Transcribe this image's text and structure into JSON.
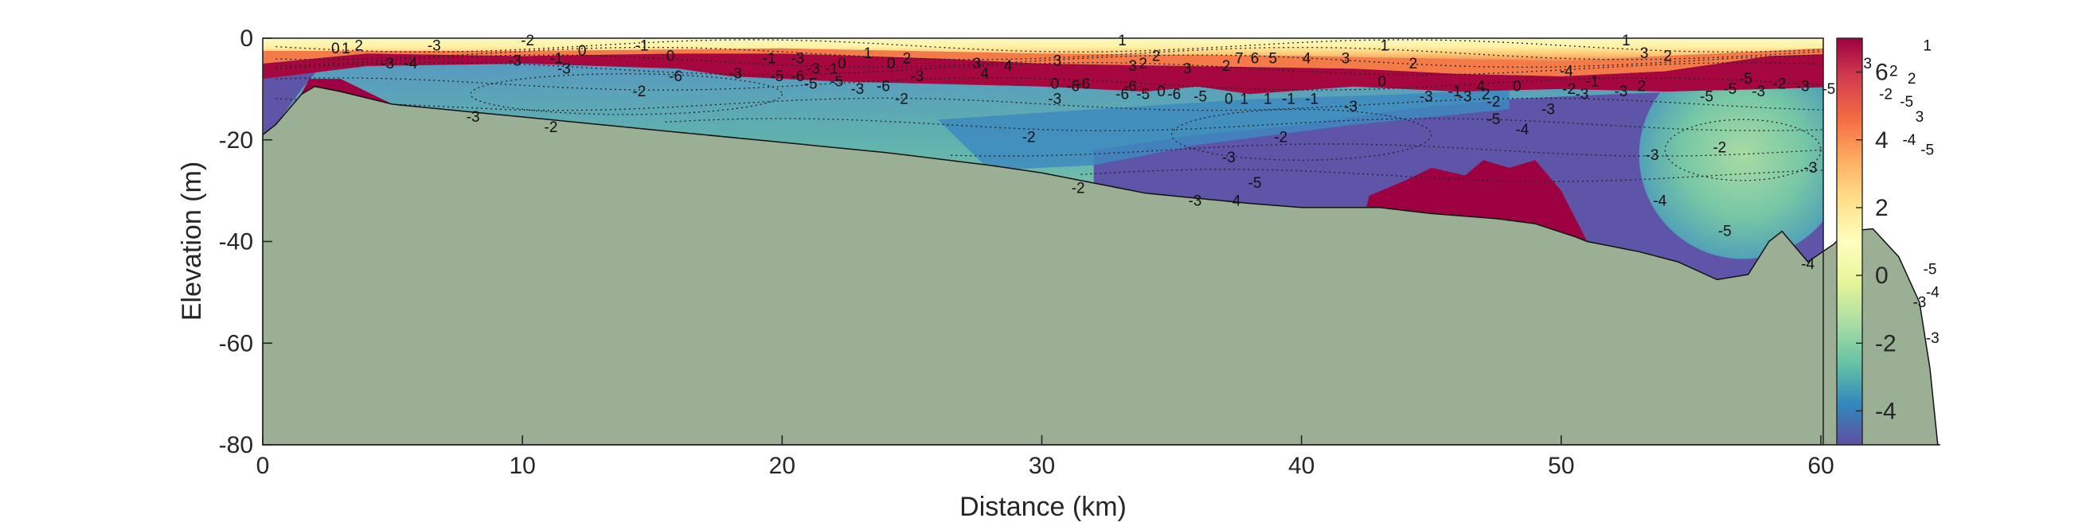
{
  "chart_data": {
    "type": "heatmap",
    "title": "",
    "xlabel": "Distance (km)",
    "ylabel": "Elevation (m)",
    "xlim": [
      0,
      64.5
    ],
    "ylim": [
      -80,
      0
    ],
    "x_ticks": [
      0,
      10,
      20,
      30,
      40,
      50,
      60
    ],
    "y_ticks": [
      0,
      -20,
      -40,
      -60,
      -80
    ],
    "x_tick_labels": [
      "0",
      "10",
      "20",
      "30",
      "40",
      "50",
      "60"
    ],
    "y_tick_labels": [
      "0",
      "-20",
      "-40",
      "-60",
      "-80"
    ],
    "colorbar": {
      "range": [
        -5,
        7
      ],
      "ticks": [
        6,
        4,
        2,
        0,
        -2,
        -4
      ],
      "tick_labels": [
        "6",
        "4",
        "2",
        "0",
        "-2",
        "-4"
      ],
      "colormap": [
        "#5e4fa2",
        "#3288bd",
        "#66c2a5",
        "#abdda4",
        "#e6f598",
        "#ffffbf",
        "#fee08b",
        "#fdae61",
        "#f46d43",
        "#d53e4f",
        "#9e0142"
      ]
    },
    "grid": false,
    "contour_lines": "dotted",
    "terrain_color": "#9aaf93",
    "bottom_profile": {
      "x": [
        0,
        0.5,
        1,
        1.5,
        2,
        3,
        5,
        8,
        12,
        16,
        20,
        24,
        28,
        30,
        32,
        34,
        36,
        38,
        40,
        42.5,
        43,
        45,
        47.5,
        49,
        50.5,
        51,
        53,
        54.5,
        56,
        57.2,
        58,
        58.5,
        59.5,
        60.5,
        61,
        62,
        63,
        63.8,
        64.2,
        64.5
      ],
      "elevation": [
        -19,
        -17,
        -14,
        -11,
        -9.5,
        -10.5,
        -13,
        -14.5,
        -16.5,
        -18.5,
        -20.5,
        -22.5,
        -25,
        -26.5,
        -28.5,
        -30.5,
        -31.5,
        -32.5,
        -33.3,
        -33.3,
        -33.3,
        -34.5,
        -35.5,
        -36.5,
        -39,
        -40,
        -42,
        -44,
        -47.5,
        -46.5,
        -40,
        -38,
        -44,
        -40.5,
        -38,
        -37.5,
        -43,
        -52,
        -65,
        -80
      ]
    },
    "contour_labels": [
      {
        "x": 2.8,
        "y": -2,
        "text": "0"
      },
      {
        "x": 3.2,
        "y": -2,
        "text": "1"
      },
      {
        "x": 3.7,
        "y": -1.5,
        "text": "2"
      },
      {
        "x": 4.8,
        "y": -5,
        "text": "-3"
      },
      {
        "x": 5.7,
        "y": -5,
        "text": "-4"
      },
      {
        "x": 6.6,
        "y": -1.5,
        "text": "-3"
      },
      {
        "x": 10.2,
        "y": -0.5,
        "text": "-2"
      },
      {
        "x": 9.7,
        "y": -4.5,
        "text": "-3"
      },
      {
        "x": 11.3,
        "y": -4,
        "text": "-1"
      },
      {
        "x": 11.6,
        "y": -6,
        "text": "-3"
      },
      {
        "x": 12.3,
        "y": -2.5,
        "text": "0"
      },
      {
        "x": 14.6,
        "y": -1.5,
        "text": "-1"
      },
      {
        "x": 15.7,
        "y": -3.5,
        "text": "0"
      },
      {
        "x": 15.9,
        "y": -7.5,
        "text": "-6"
      },
      {
        "x": 14.5,
        "y": -10.5,
        "text": "-2"
      },
      {
        "x": 8.1,
        "y": -15.5,
        "text": "-3"
      },
      {
        "x": 11.1,
        "y": -17.5,
        "text": "-2"
      },
      {
        "x": 18.2,
        "y": -7,
        "text": "-3"
      },
      {
        "x": 19.5,
        "y": -4,
        "text": "-1"
      },
      {
        "x": 19.8,
        "y": -7.5,
        "text": "-5"
      },
      {
        "x": 20.6,
        "y": -4,
        "text": "-3"
      },
      {
        "x": 20.6,
        "y": -7.5,
        "text": "-6"
      },
      {
        "x": 21.1,
        "y": -9,
        "text": "-5"
      },
      {
        "x": 21.2,
        "y": -6,
        "text": "-3"
      },
      {
        "x": 21.9,
        "y": -6,
        "text": "-1"
      },
      {
        "x": 22.3,
        "y": -5,
        "text": "0"
      },
      {
        "x": 23.3,
        "y": -3,
        "text": "1"
      },
      {
        "x": 22.1,
        "y": -8.5,
        "text": "-5"
      },
      {
        "x": 22.9,
        "y": -10,
        "text": "-3"
      },
      {
        "x": 24.2,
        "y": -5,
        "text": "0"
      },
      {
        "x": 23.9,
        "y": -9.5,
        "text": "-6"
      },
      {
        "x": 24.8,
        "y": -4,
        "text": "2"
      },
      {
        "x": 24.6,
        "y": -12,
        "text": "-2"
      },
      {
        "x": 25.2,
        "y": -7.5,
        "text": "-3"
      },
      {
        "x": 27.5,
        "y": -5,
        "text": "3"
      },
      {
        "x": 28.7,
        "y": -5.5,
        "text": "4"
      },
      {
        "x": 27.8,
        "y": -7,
        "text": "4"
      },
      {
        "x": 30.6,
        "y": -4.5,
        "text": "3"
      },
      {
        "x": 30.5,
        "y": -9,
        "text": "0"
      },
      {
        "x": 31.2,
        "y": -9.5,
        "text": "-6"
      },
      {
        "x": 31.6,
        "y": -9,
        "text": "-6"
      },
      {
        "x": 30.5,
        "y": -12,
        "text": "-3"
      },
      {
        "x": 29.5,
        "y": -19.5,
        "text": "-2"
      },
      {
        "x": 31.4,
        "y": -29.5,
        "text": "-2"
      },
      {
        "x": 33.1,
        "y": -0.5,
        "text": "1"
      },
      {
        "x": 33.5,
        "y": -5.5,
        "text": "3"
      },
      {
        "x": 33.9,
        "y": -5,
        "text": "2"
      },
      {
        "x": 34.4,
        "y": -3.5,
        "text": "2"
      },
      {
        "x": 33.4,
        "y": -9.5,
        "text": "-6"
      },
      {
        "x": 33.1,
        "y": -11,
        "text": "-6"
      },
      {
        "x": 33.9,
        "y": -11,
        "text": "-5"
      },
      {
        "x": 34.6,
        "y": -10.5,
        "text": "0"
      },
      {
        "x": 35.1,
        "y": -11,
        "text": "-6"
      },
      {
        "x": 35.6,
        "y": -6,
        "text": "3"
      },
      {
        "x": 37.1,
        "y": -5.5,
        "text": "2"
      },
      {
        "x": 37.6,
        "y": -4,
        "text": "7"
      },
      {
        "x": 38.2,
        "y": -4,
        "text": "6"
      },
      {
        "x": 38.9,
        "y": -4,
        "text": "5"
      },
      {
        "x": 40.2,
        "y": -4,
        "text": "4"
      },
      {
        "x": 41.7,
        "y": -4,
        "text": "3"
      },
      {
        "x": 36.1,
        "y": -11.5,
        "text": "-5"
      },
      {
        "x": 37.2,
        "y": -12,
        "text": "0"
      },
      {
        "x": 37.8,
        "y": -12,
        "text": "1"
      },
      {
        "x": 38.7,
        "y": -12,
        "text": "1"
      },
      {
        "x": 39.5,
        "y": -12,
        "text": "-1"
      },
      {
        "x": 40.4,
        "y": -12,
        "text": "-1"
      },
      {
        "x": 41.9,
        "y": -13.5,
        "text": "-3"
      },
      {
        "x": 39.2,
        "y": -19.5,
        "text": "-2"
      },
      {
        "x": 37.2,
        "y": -23.5,
        "text": "-3"
      },
      {
        "x": 38.2,
        "y": -28.5,
        "text": "-5"
      },
      {
        "x": 35.9,
        "y": -32,
        "text": "-3"
      },
      {
        "x": 37.4,
        "y": -32,
        "text": "-4"
      },
      {
        "x": 43.2,
        "y": -1.5,
        "text": "1"
      },
      {
        "x": 44.3,
        "y": -5,
        "text": "2"
      },
      {
        "x": 43.1,
        "y": -8.5,
        "text": "0"
      },
      {
        "x": 44.8,
        "y": -11.5,
        "text": "-3"
      },
      {
        "x": 45.9,
        "y": -10.5,
        "text": "-1"
      },
      {
        "x": 46.3,
        "y": -11.5,
        "text": "-3"
      },
      {
        "x": 46.9,
        "y": -9.5,
        "text": "4"
      },
      {
        "x": 47.1,
        "y": -11,
        "text": "2"
      },
      {
        "x": 47.4,
        "y": -12.5,
        "text": "-2"
      },
      {
        "x": 48.3,
        "y": -9.5,
        "text": "0"
      },
      {
        "x": 47.4,
        "y": -16,
        "text": "-5"
      },
      {
        "x": 48.5,
        "y": -18,
        "text": "-4"
      },
      {
        "x": 49.5,
        "y": -14,
        "text": "-3"
      },
      {
        "x": 50.3,
        "y": -10,
        "text": "-2"
      },
      {
        "x": 50.8,
        "y": -11,
        "text": "-3"
      },
      {
        "x": 51.2,
        "y": -8.5,
        "text": "-1"
      },
      {
        "x": 52.3,
        "y": -10.5,
        "text": "-3"
      },
      {
        "x": 53.1,
        "y": -9.5,
        "text": "2"
      },
      {
        "x": 52.5,
        "y": -0.5,
        "text": "1"
      },
      {
        "x": 54.1,
        "y": -3.5,
        "text": "2"
      },
      {
        "x": 53.2,
        "y": -3,
        "text": "3"
      },
      {
        "x": 55.6,
        "y": -11.5,
        "text": "-5"
      },
      {
        "x": 56.5,
        "y": -10,
        "text": "-5"
      },
      {
        "x": 57.1,
        "y": -8,
        "text": "-5"
      },
      {
        "x": 57.6,
        "y": -10.5,
        "text": "-3"
      },
      {
        "x": 58.4,
        "y": -9,
        "text": "-2"
      },
      {
        "x": 59.3,
        "y": -9.5,
        "text": "-3"
      },
      {
        "x": 60.3,
        "y": -10,
        "text": "-5"
      },
      {
        "x": 61.2,
        "y": -8.5,
        "text": "-3"
      },
      {
        "x": 62.5,
        "y": -11,
        "text": "-2"
      },
      {
        "x": 61.8,
        "y": -5,
        "text": "3"
      },
      {
        "x": 62.8,
        "y": -6.5,
        "text": "2"
      },
      {
        "x": 63.5,
        "y": -8,
        "text": "2"
      },
      {
        "x": 63.8,
        "y": -15.5,
        "text": "3"
      },
      {
        "x": 64.1,
        "y": -1.5,
        "text": "1"
      },
      {
        "x": 63.4,
        "y": -20,
        "text": "-4"
      },
      {
        "x": 64.1,
        "y": -22,
        "text": "-5"
      },
      {
        "x": 63.3,
        "y": -12.5,
        "text": "-5"
      },
      {
        "x": 56.1,
        "y": -21.5,
        "text": "-2"
      },
      {
        "x": 53.5,
        "y": -23,
        "text": "-3"
      },
      {
        "x": 53.8,
        "y": -32,
        "text": "-4"
      },
      {
        "x": 56.3,
        "y": -38,
        "text": "-5"
      },
      {
        "x": 59.6,
        "y": -25.5,
        "text": "-3"
      },
      {
        "x": 61.0,
        "y": -34,
        "text": "-4"
      },
      {
        "x": 59.5,
        "y": -44.5,
        "text": "-4"
      },
      {
        "x": 64.2,
        "y": -45.5,
        "text": "-5"
      },
      {
        "x": 64.3,
        "y": -50,
        "text": "-4"
      },
      {
        "x": 63.8,
        "y": -52,
        "text": "-3"
      },
      {
        "x": 64.3,
        "y": -59,
        "text": "-3"
      },
      {
        "x": 50.2,
        "y": -6.5,
        "text": "-4"
      }
    ]
  }
}
